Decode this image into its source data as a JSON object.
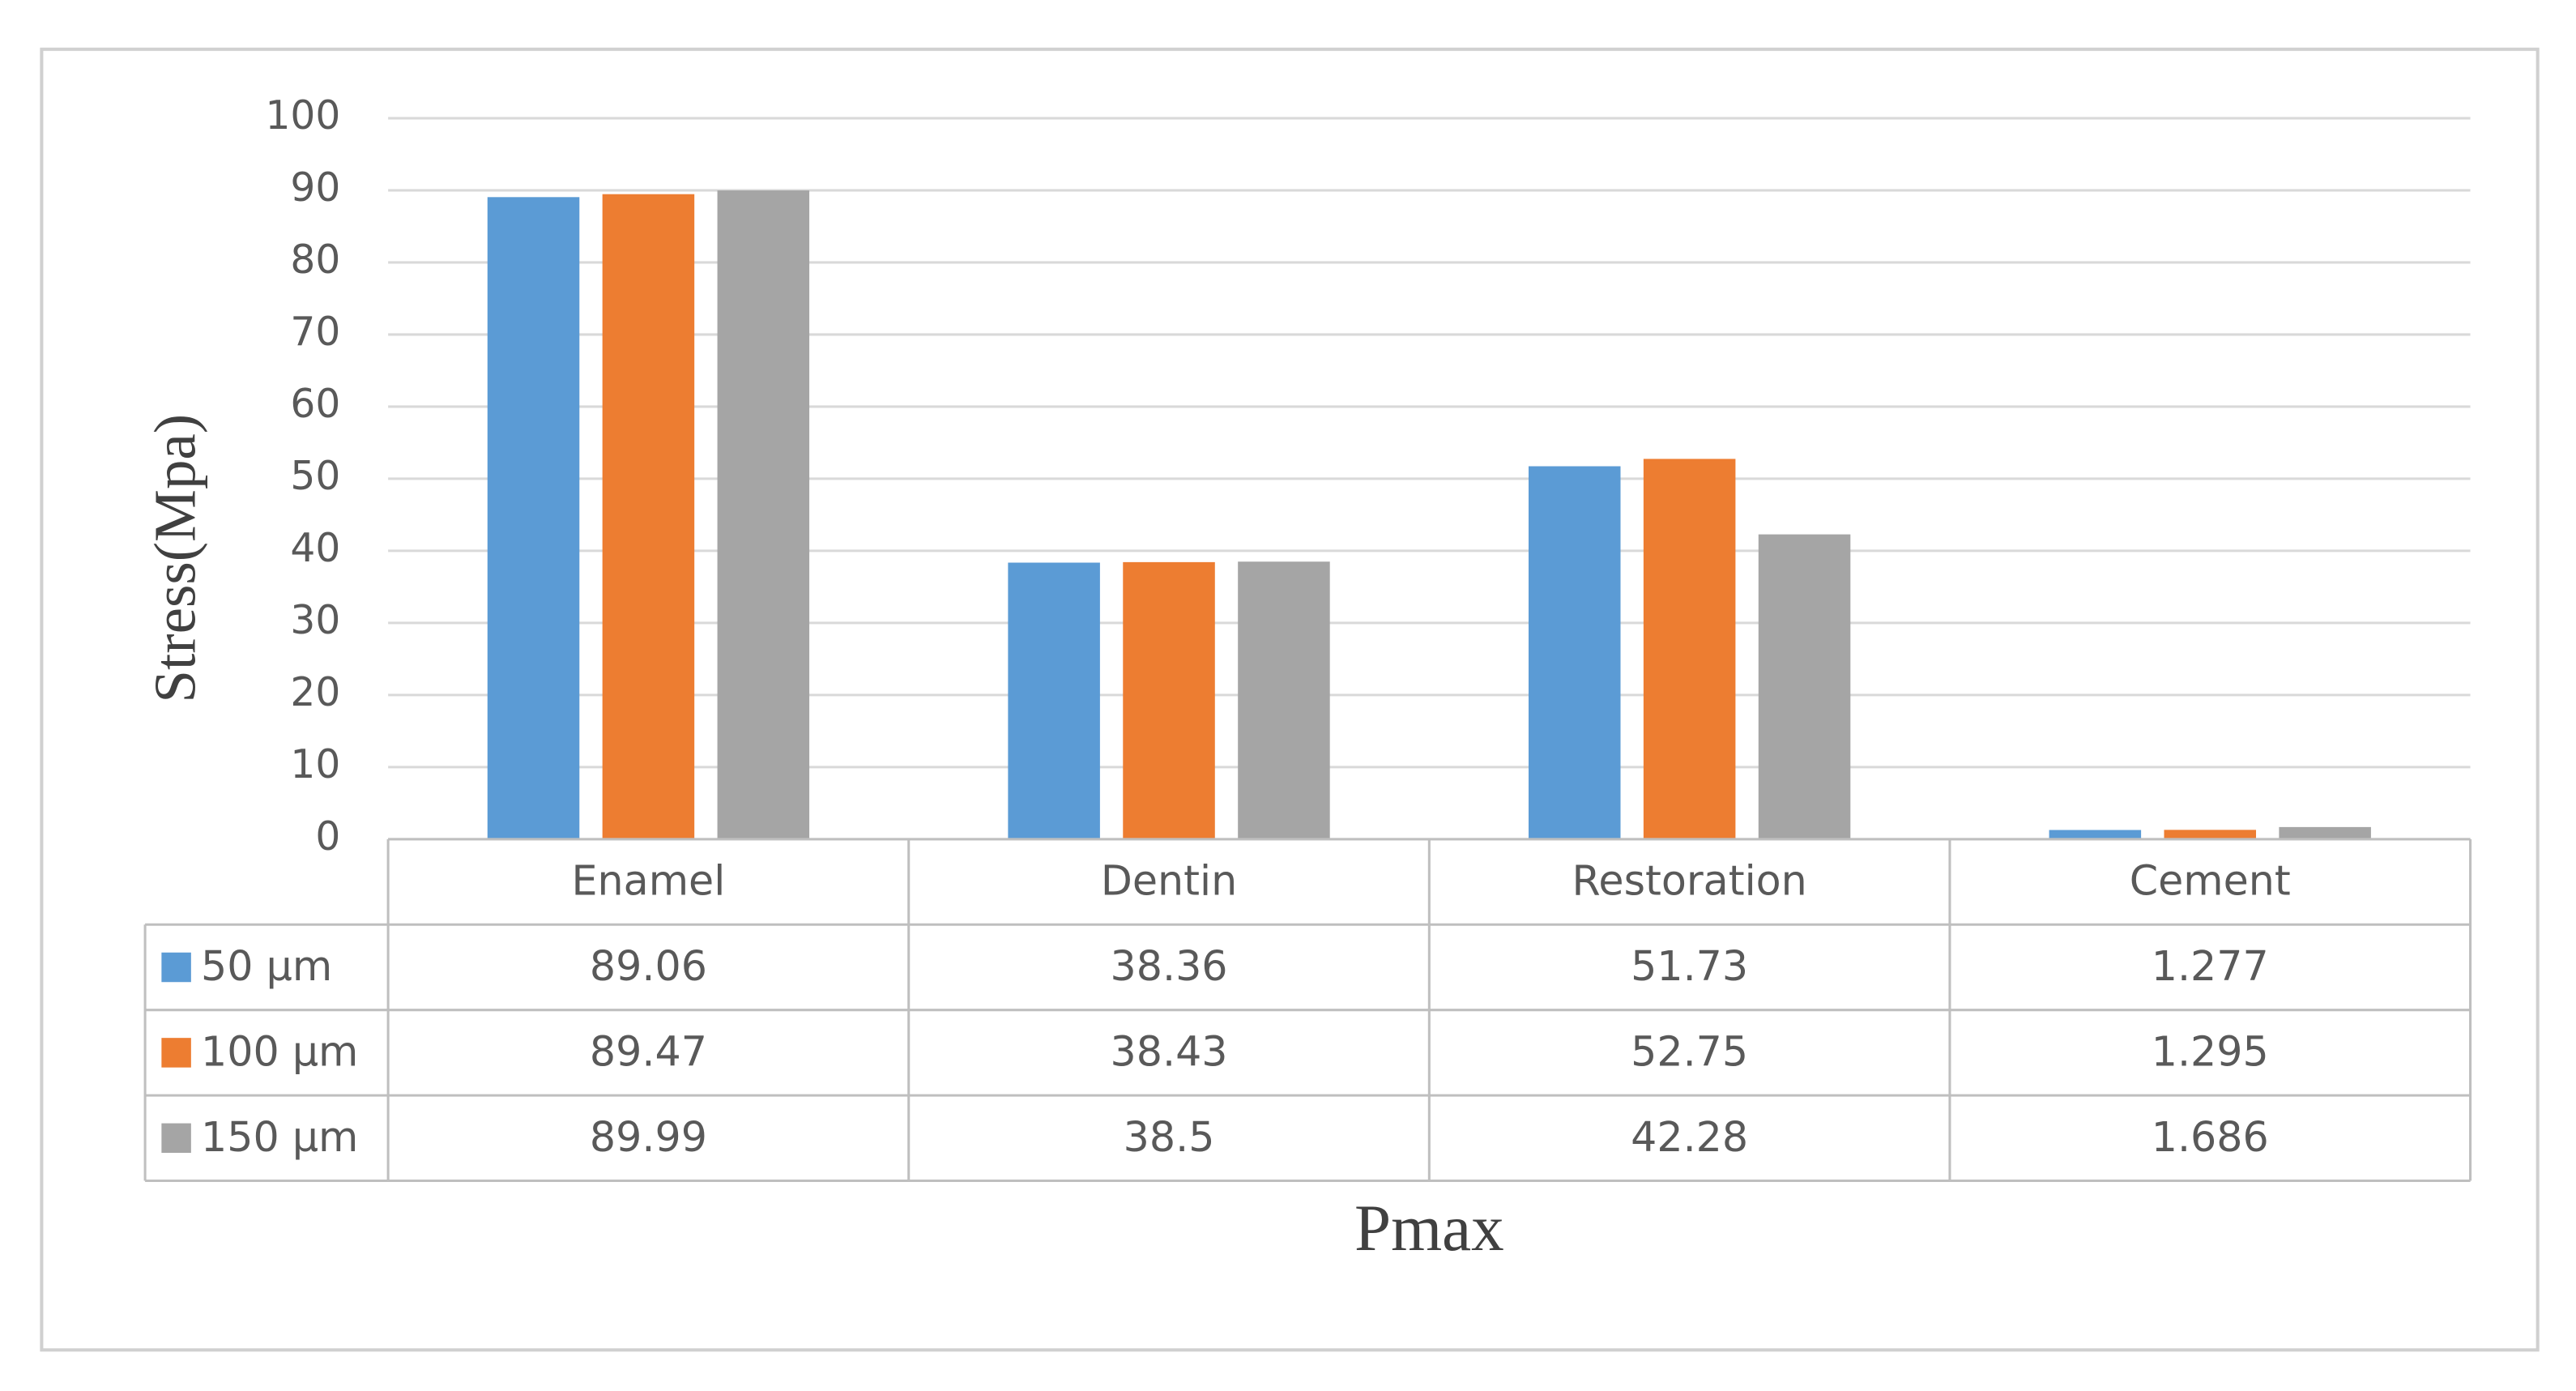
{
  "chart_data": {
    "type": "bar",
    "xlabel": "Pmax",
    "ylabel": "Stress(Mpa)",
    "categories": [
      "Enamel",
      "Dentin",
      "Restoration",
      "Cement"
    ],
    "series": [
      {
        "name": "50 µm",
        "color": "#5b9bd5",
        "values": [
          89.06,
          38.36,
          51.73,
          1.277
        ]
      },
      {
        "name": "100 µm",
        "color": "#ed7d31",
        "values": [
          89.47,
          38.43,
          52.75,
          1.295
        ]
      },
      {
        "name": "150 µm",
        "color": "#a5a5a5",
        "values": [
          89.99,
          38.5,
          42.28,
          1.686
        ]
      }
    ],
    "ylim": [
      0,
      100
    ],
    "yticks": [
      0,
      10,
      20,
      30,
      40,
      50,
      60,
      70,
      80,
      90,
      100
    ],
    "grid": true,
    "data_table": true
  }
}
